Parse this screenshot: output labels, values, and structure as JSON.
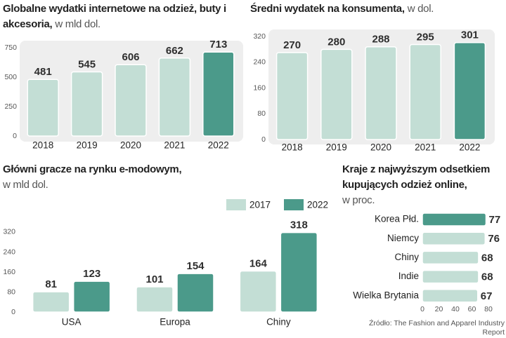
{
  "chart_data": [
    {
      "type": "bar",
      "title": "Globalne wydatki internetowe na odzież, buty i akcesoria,",
      "subtitle": "w mld dol.",
      "categories": [
        "2018",
        "2019",
        "2020",
        "2021",
        "2022"
      ],
      "values": [
        481,
        545,
        606,
        662,
        713
      ],
      "colors": [
        "#c3ded5",
        "#c3ded5",
        "#c3ded5",
        "#c3ded5",
        "#4b9a8a"
      ],
      "ylim": [
        0,
        800
      ],
      "yticks": [
        0,
        250,
        500,
        750
      ]
    },
    {
      "type": "bar",
      "title": "Średni wydatek na konsumenta,",
      "subtitle": "w dol.",
      "categories": [
        "2018",
        "2019",
        "2020",
        "2021",
        "2022"
      ],
      "values": [
        270,
        280,
        288,
        295,
        301
      ],
      "colors": [
        "#c3ded5",
        "#c3ded5",
        "#c3ded5",
        "#c3ded5",
        "#4b9a8a"
      ],
      "ylim": [
        0,
        340
      ],
      "yticks": [
        0,
        80,
        160,
        240,
        320
      ]
    },
    {
      "type": "grouped_bar",
      "title": "Główni gracze na rynku e-modowym,",
      "subtitle": "w mld dol.",
      "categories": [
        "USA",
        "Europa",
        "Chiny"
      ],
      "series": [
        {
          "name": "2017",
          "color": "#c3ded5",
          "values": [
            81,
            101,
            164
          ]
        },
        {
          "name": "2022",
          "color": "#4b9a8a",
          "values": [
            123,
            154,
            318
          ]
        }
      ],
      "ylim": [
        0,
        330
      ],
      "yticks": [
        0,
        80,
        160,
        240,
        320
      ],
      "legend": "top-right"
    },
    {
      "type": "horizontal_bar",
      "title": "Kraje z najwyższym odsetkiem kupujących odzież online,",
      "subtitle": "w proc.",
      "categories": [
        "Korea Płd.",
        "Niemcy",
        "Chiny",
        "Indie",
        "Wielka Brytania"
      ],
      "values": [
        77,
        76,
        68,
        68,
        67
      ],
      "colors": [
        "#4b9a8a",
        "#c3ded5",
        "#c3ded5",
        "#c3ded5",
        "#c3ded5"
      ],
      "xlim": [
        0,
        85
      ],
      "xticks": [
        0,
        20,
        40,
        60,
        80
      ]
    }
  ],
  "source": "Źródło: The Fashion and Apparel Industry Report"
}
